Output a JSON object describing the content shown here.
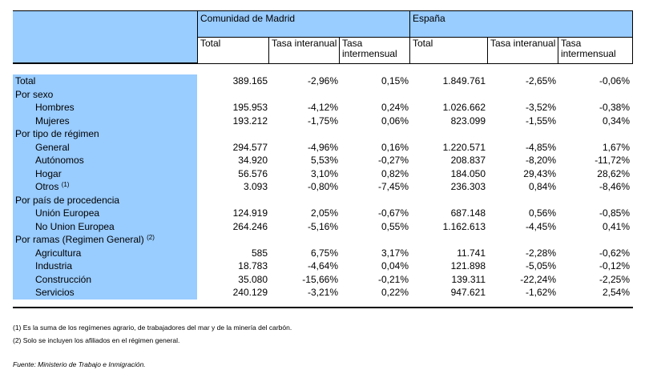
{
  "header": {
    "groups": [
      {
        "title": "Comunidad de Madrid",
        "cols": [
          "Total",
          "Tasa interanual",
          "Tasa intermensual"
        ]
      },
      {
        "title": "España",
        "cols": [
          "Total",
          "Tasa interanual",
          "Tasa intermensual"
        ]
      }
    ]
  },
  "rows": [
    {
      "label": "Total",
      "indent": false,
      "values": [
        "389.165",
        "-2,96%",
        "0,15%",
        "1.849.761",
        "-2,65%",
        "-0,06%"
      ]
    },
    {
      "label": "Por sexo",
      "indent": false,
      "values": []
    },
    {
      "label": "Hombres",
      "indent": true,
      "values": [
        "195.953",
        "-4,12%",
        "0,24%",
        "1.026.662",
        "-3,52%",
        "-0,38%"
      ]
    },
    {
      "label": "Mujeres",
      "indent": true,
      "values": [
        "193.212",
        "-1,75%",
        "0,06%",
        "823.099",
        "-1,55%",
        "0,34%"
      ]
    },
    {
      "label": "Por tipo de régimen",
      "indent": false,
      "values": []
    },
    {
      "label": "General",
      "indent": true,
      "values": [
        "294.577",
        "-4,96%",
        "0,16%",
        "1.220.571",
        "-4,85%",
        "1,67%"
      ]
    },
    {
      "label": "Autónomos",
      "indent": true,
      "values": [
        "34.920",
        "5,53%",
        "-0,27%",
        "208.837",
        "-8,20%",
        "-11,72%"
      ]
    },
    {
      "label": "Hogar",
      "indent": true,
      "values": [
        "56.576",
        "3,10%",
        "0,82%",
        "184.050",
        "29,43%",
        "28,62%"
      ]
    },
    {
      "label": "Otros",
      "sup": "(1)",
      "indent": true,
      "values": [
        "3.093",
        "-0,80%",
        "-7,45%",
        "236.303",
        "0,84%",
        "-8,46%"
      ]
    },
    {
      "label": "Por país de procedencia",
      "indent": false,
      "values": []
    },
    {
      "label": "Unión Europea",
      "indent": true,
      "values": [
        "124.919",
        "2,05%",
        "-0,67%",
        "687.148",
        "0,56%",
        "-0,85%"
      ]
    },
    {
      "label": "No Union Europea",
      "indent": true,
      "values": [
        "264.246",
        "-5,16%",
        "0,55%",
        "1.162.613",
        "-4,45%",
        "0,41%"
      ]
    },
    {
      "label": "Por ramas (Regimen General)",
      "sup": "(2)",
      "indent": false,
      "values": []
    },
    {
      "label": "Agricultura",
      "indent": true,
      "values": [
        "585",
        "6,75%",
        "3,17%",
        "11.741",
        "-2,28%",
        "-0,62%"
      ]
    },
    {
      "label": "Industria",
      "indent": true,
      "values": [
        "18.783",
        "-4,64%",
        "0,04%",
        "121.898",
        "-5,05%",
        "-0,12%"
      ]
    },
    {
      "label": "Construcción",
      "indent": true,
      "values": [
        "35.080",
        "-15,66%",
        "-0,21%",
        "139.311",
        "-22,24%",
        "-2,25%"
      ]
    },
    {
      "label": "Servicios",
      "indent": true,
      "values": [
        "240.129",
        "-3,21%",
        "0,22%",
        "947.621",
        "-1,62%",
        "2,54%"
      ]
    }
  ],
  "notes": [
    "(1) Es la suma de los regímenes  agrario, de trabajadores del mar y de la minería del carbón.",
    "(2) Solo se incluyen los afiliados en el régimen general."
  ],
  "source": "Fuente: Ministerio de Trabajo e Inmigración.",
  "colors": {
    "label_bg": "#99ccff"
  }
}
